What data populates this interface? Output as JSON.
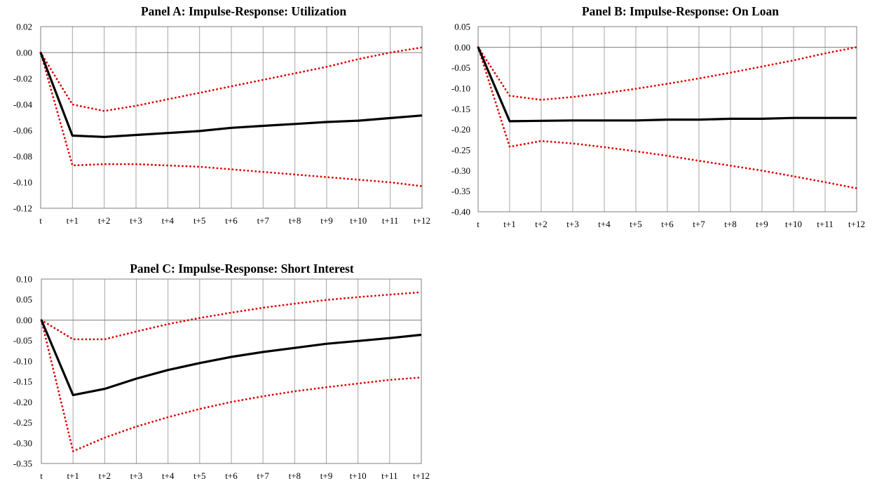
{
  "chart_data": [
    {
      "type": "line",
      "title": "Panel A: Impulse-Response: Utilization",
      "xlabel": "",
      "ylabel": "",
      "categories": [
        "t",
        "t+1",
        "t+2",
        "t+3",
        "t+4",
        "t+5",
        "t+6",
        "t+7",
        "t+8",
        "t+9",
        "t+10",
        "t+11",
        "t+12"
      ],
      "ylim": [
        -0.12,
        0.02
      ],
      "yticks": [
        0.02,
        0.0,
        -0.02,
        -0.04,
        -0.06,
        -0.08,
        -0.1,
        -0.12
      ],
      "grid": "vertical",
      "legend": "none",
      "series": [
        {
          "style": "solid",
          "color": "#000000",
          "values": [
            0.0,
            -0.064,
            -0.065,
            -0.0635,
            -0.062,
            -0.0605,
            -0.058,
            -0.0565,
            -0.055,
            -0.0535,
            -0.0525,
            -0.0505,
            -0.0485
          ]
        },
        {
          "style": "dotted",
          "color": "#e00000",
          "values": [
            0.0,
            -0.04,
            -0.045,
            -0.041,
            -0.036,
            -0.031,
            -0.026,
            -0.021,
            -0.016,
            -0.011,
            -0.005,
            0.0,
            0.004
          ]
        },
        {
          "style": "dotted",
          "color": "#e00000",
          "values": [
            0.0,
            -0.087,
            -0.086,
            -0.086,
            -0.087,
            -0.088,
            -0.09,
            -0.092,
            -0.094,
            -0.096,
            -0.098,
            -0.1,
            -0.103
          ]
        }
      ]
    },
    {
      "type": "line",
      "title": "Panel B: Impulse-Response: On Loan",
      "xlabel": "",
      "ylabel": "",
      "categories": [
        "t",
        "t+1",
        "t+2",
        "t+3",
        "t+4",
        "t+5",
        "t+6",
        "t+7",
        "t+8",
        "t+9",
        "t+10",
        "t+11",
        "t+12"
      ],
      "ylim": [
        -0.4,
        0.05
      ],
      "yticks": [
        0.05,
        0.0,
        -0.05,
        -0.1,
        -0.15,
        -0.2,
        -0.25,
        -0.3,
        -0.35,
        -0.4
      ],
      "grid": "vertical",
      "legend": "none",
      "series": [
        {
          "style": "solid",
          "color": "#000000",
          "values": [
            0.0,
            -0.18,
            -0.179,
            -0.178,
            -0.178,
            -0.178,
            -0.176,
            -0.176,
            -0.174,
            -0.174,
            -0.172,
            -0.172,
            -0.172
          ]
        },
        {
          "style": "dotted",
          "color": "#e00000",
          "values": [
            0.0,
            -0.118,
            -0.128,
            -0.121,
            -0.112,
            -0.101,
            -0.089,
            -0.076,
            -0.062,
            -0.047,
            -0.032,
            -0.015,
            0.0
          ]
        },
        {
          "style": "dotted",
          "color": "#e00000",
          "values": [
            0.0,
            -0.242,
            -0.228,
            -0.234,
            -0.243,
            -0.253,
            -0.264,
            -0.276,
            -0.288,
            -0.3,
            -0.314,
            -0.328,
            -0.343
          ]
        }
      ]
    },
    {
      "type": "line",
      "title": "Panel C: Impulse-Response: Short Interest",
      "xlabel": "",
      "ylabel": "",
      "categories": [
        "t",
        "t+1",
        "t+2",
        "t+3",
        "t+4",
        "t+5",
        "t+6",
        "t+7",
        "t+8",
        "t+9",
        "t+10",
        "t+11",
        "t+12"
      ],
      "ylim": [
        -0.35,
        0.1
      ],
      "yticks": [
        0.1,
        0.05,
        0.0,
        -0.05,
        -0.1,
        -0.15,
        -0.2,
        -0.25,
        -0.3,
        -0.35
      ],
      "grid": "vertical",
      "legend": "none",
      "series": [
        {
          "style": "solid",
          "color": "#000000",
          "values": [
            0.0,
            -0.183,
            -0.168,
            -0.143,
            -0.122,
            -0.105,
            -0.09,
            -0.078,
            -0.068,
            -0.058,
            -0.051,
            -0.044,
            -0.036
          ]
        },
        {
          "style": "dotted",
          "color": "#e00000",
          "values": [
            0.0,
            -0.047,
            -0.047,
            -0.028,
            -0.01,
            0.005,
            0.018,
            0.03,
            0.04,
            0.049,
            0.056,
            0.062,
            0.068
          ]
        },
        {
          "style": "dotted",
          "color": "#e00000",
          "values": [
            0.0,
            -0.32,
            -0.287,
            -0.26,
            -0.237,
            -0.217,
            -0.2,
            -0.186,
            -0.174,
            -0.164,
            -0.155,
            -0.146,
            -0.14
          ]
        }
      ]
    }
  ]
}
